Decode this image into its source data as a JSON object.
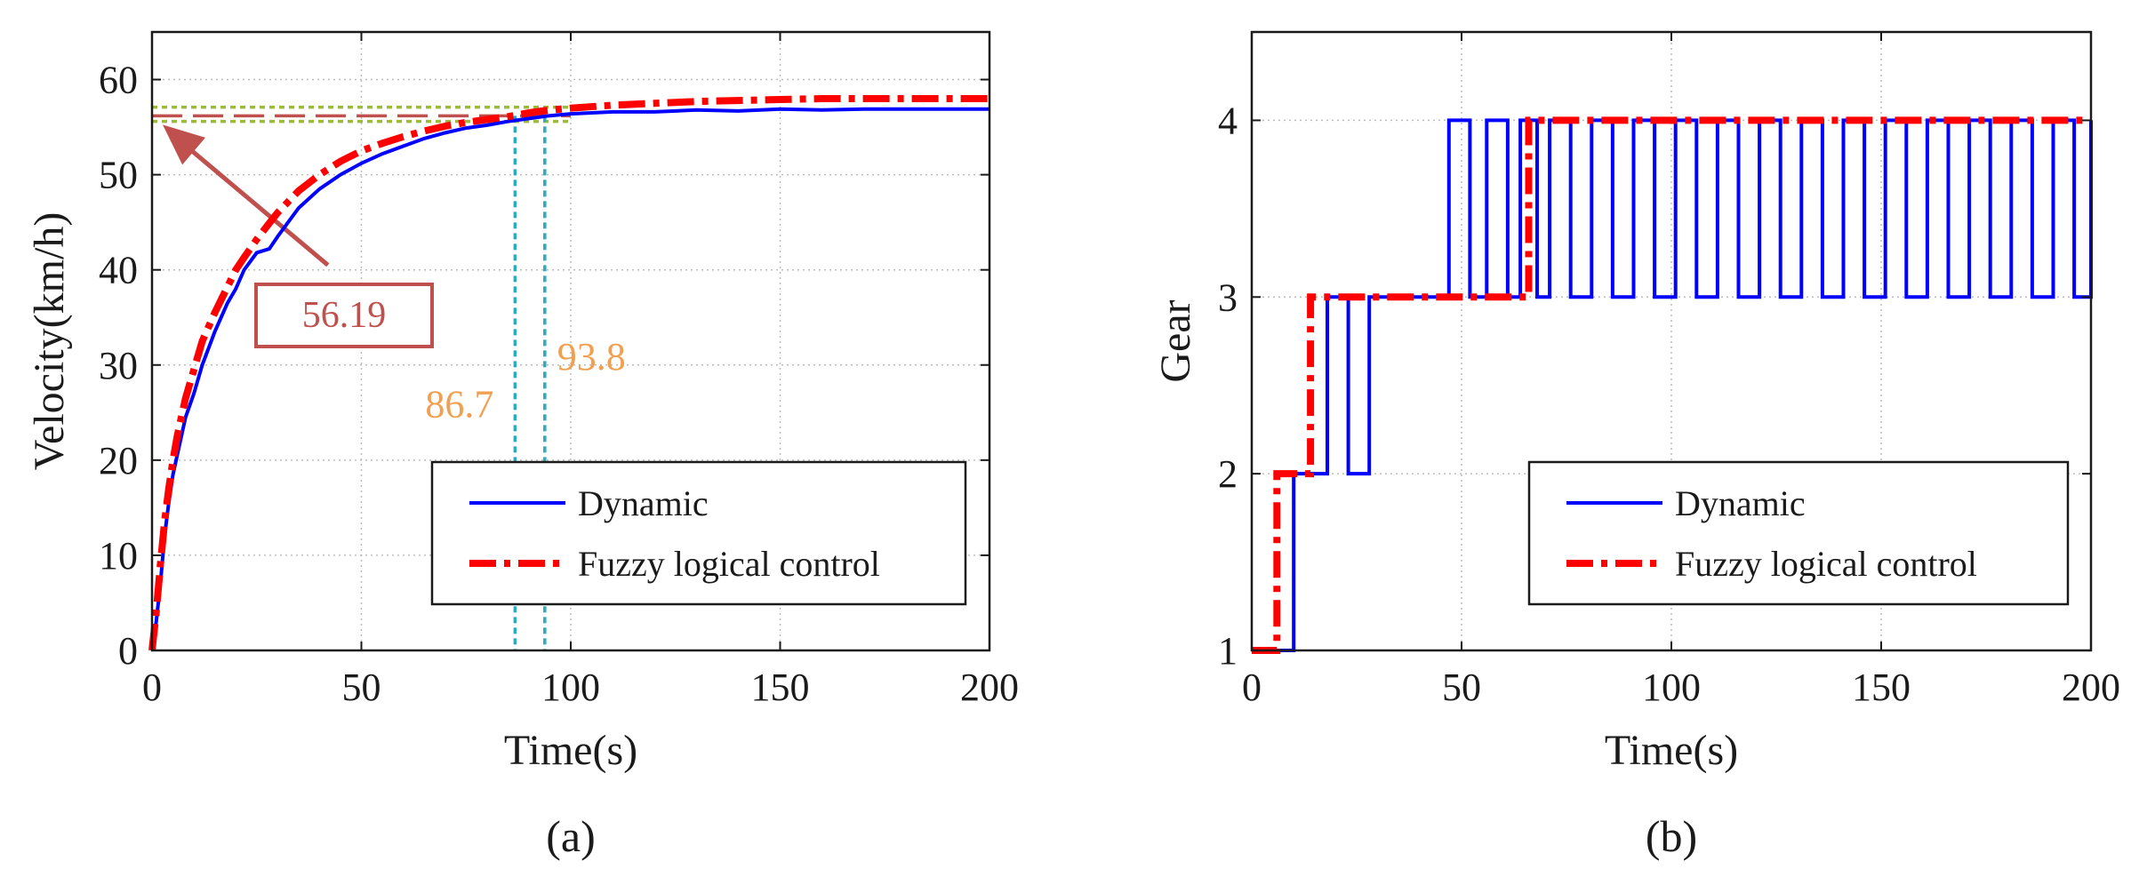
{
  "chart_data": [
    {
      "id": "a",
      "type": "line",
      "caption": "(a)",
      "xlabel": "Time(s)",
      "ylabel": "Velocity(km/h)",
      "xlim": [
        0,
        200
      ],
      "ylim": [
        0,
        65
      ],
      "xticks": [
        0,
        50,
        100,
        150,
        200
      ],
      "yticks": [
        0,
        10,
        20,
        30,
        40,
        50,
        60
      ],
      "xtick_labels": [
        "0",
        "50",
        "100",
        "150",
        "200"
      ],
      "ytick_labels": [
        "0",
        "10",
        "20",
        "30",
        "40",
        "50",
        "60"
      ],
      "grid": true,
      "legend_position": "bottom-right",
      "series": [
        {
          "name": "Dynamic",
          "color": "#0000ff",
          "style": "solid",
          "x": [
            0,
            1,
            2,
            3,
            4,
            5,
            6,
            8,
            10,
            12,
            15,
            18,
            20,
            22,
            25,
            28,
            30,
            35,
            40,
            45,
            50,
            55,
            60,
            65,
            70,
            75,
            80,
            85,
            90,
            95,
            100,
            110,
            120,
            130,
            140,
            150,
            160,
            170,
            180,
            190,
            200
          ],
          "y": [
            0,
            3,
            7,
            12,
            15.5,
            18.5,
            20.5,
            24.5,
            27,
            30,
            33.5,
            36.5,
            38,
            40,
            41.8,
            42.2,
            43.5,
            46.5,
            48.5,
            50,
            51.2,
            52.2,
            53,
            53.8,
            54.4,
            54.9,
            55.2,
            55.6,
            55.9,
            56.2,
            56.4,
            56.6,
            56.6,
            56.8,
            56.7,
            56.9,
            56.8,
            56.9,
            56.9,
            56.9,
            56.9
          ]
        },
        {
          "name": "Fuzzy logical control",
          "color": "#ff0000",
          "style": "dashdot",
          "x": [
            0,
            1,
            2,
            3,
            4,
            5,
            6,
            8,
            10,
            12,
            15,
            18,
            20,
            22,
            25,
            28,
            30,
            35,
            40,
            45,
            50,
            55,
            60,
            65,
            70,
            75,
            80,
            85,
            90,
            95,
            100,
            110,
            120,
            130,
            140,
            150,
            160,
            170,
            180,
            190,
            200
          ],
          "y": [
            0,
            4,
            9,
            13.5,
            17,
            20,
            22.5,
            26.5,
            29.5,
            32.5,
            35.5,
            38.2,
            40,
            41.3,
            43.2,
            44.9,
            46,
            48.3,
            50,
            51.4,
            52.5,
            53.3,
            54,
            54.6,
            55.1,
            55.5,
            55.8,
            56.1,
            56.5,
            56.8,
            57,
            57.3,
            57.5,
            57.7,
            57.8,
            57.9,
            58,
            58,
            58,
            58,
            58
          ]
        }
      ],
      "reference_lines": {
        "horizontal_dashed_red": 56.19,
        "horizontal_dotted_green": [
          55.6,
          57.1
        ],
        "vertical_dotted_cyan": [
          86.7,
          93.8
        ],
        "color_green": "#9cbb3c",
        "color_cyan": "#2eaabf"
      },
      "annotations": [
        {
          "text": "56.19",
          "kind": "boxed-arrow",
          "color": "#c0504d",
          "points_to": [
            0,
            56.19
          ]
        },
        {
          "text": "86.7",
          "color": "#f0a050"
        },
        {
          "text": "93.8",
          "color": "#f0a050"
        }
      ]
    },
    {
      "id": "b",
      "type": "line",
      "caption": "(b)",
      "xlabel": "Time(s)",
      "ylabel": "Gear",
      "xlim": [
        0,
        200
      ],
      "ylim": [
        1,
        4.5
      ],
      "xticks": [
        0,
        50,
        100,
        150,
        200
      ],
      "yticks": [
        1,
        2,
        3,
        4
      ],
      "xtick_labels": [
        "0",
        "50",
        "100",
        "150",
        "200"
      ],
      "ytick_labels": [
        "1",
        "2",
        "3",
        "4"
      ],
      "grid": true,
      "legend_position": "bottom-right",
      "series": [
        {
          "name": "Dynamic",
          "color": "#0000ff",
          "style": "solid",
          "step": true,
          "x": [
            0,
            10,
            18,
            23,
            28,
            47,
            52,
            56,
            61,
            64,
            68,
            71,
            76,
            81,
            86,
            91,
            96,
            101,
            106,
            111,
            116,
            121,
            126,
            131,
            136,
            141,
            146,
            151,
            156,
            161,
            166,
            171,
            176,
            181,
            186,
            191,
            196,
            200
          ],
          "y": [
            1,
            2,
            3,
            2,
            3,
            4,
            3,
            4,
            3,
            4,
            3,
            4,
            3,
            4,
            3,
            4,
            3,
            4,
            3,
            4,
            3,
            4,
            3,
            4,
            3,
            4,
            3,
            4,
            3,
            4,
            3,
            4,
            3,
            4,
            3,
            4,
            3,
            4
          ]
        },
        {
          "name": "Fuzzy logical control",
          "color": "#ff0000",
          "style": "dashdot",
          "step": true,
          "x": [
            0,
            6,
            14,
            66,
            200
          ],
          "y": [
            1,
            2,
            3,
            4,
            4
          ]
        }
      ]
    }
  ]
}
